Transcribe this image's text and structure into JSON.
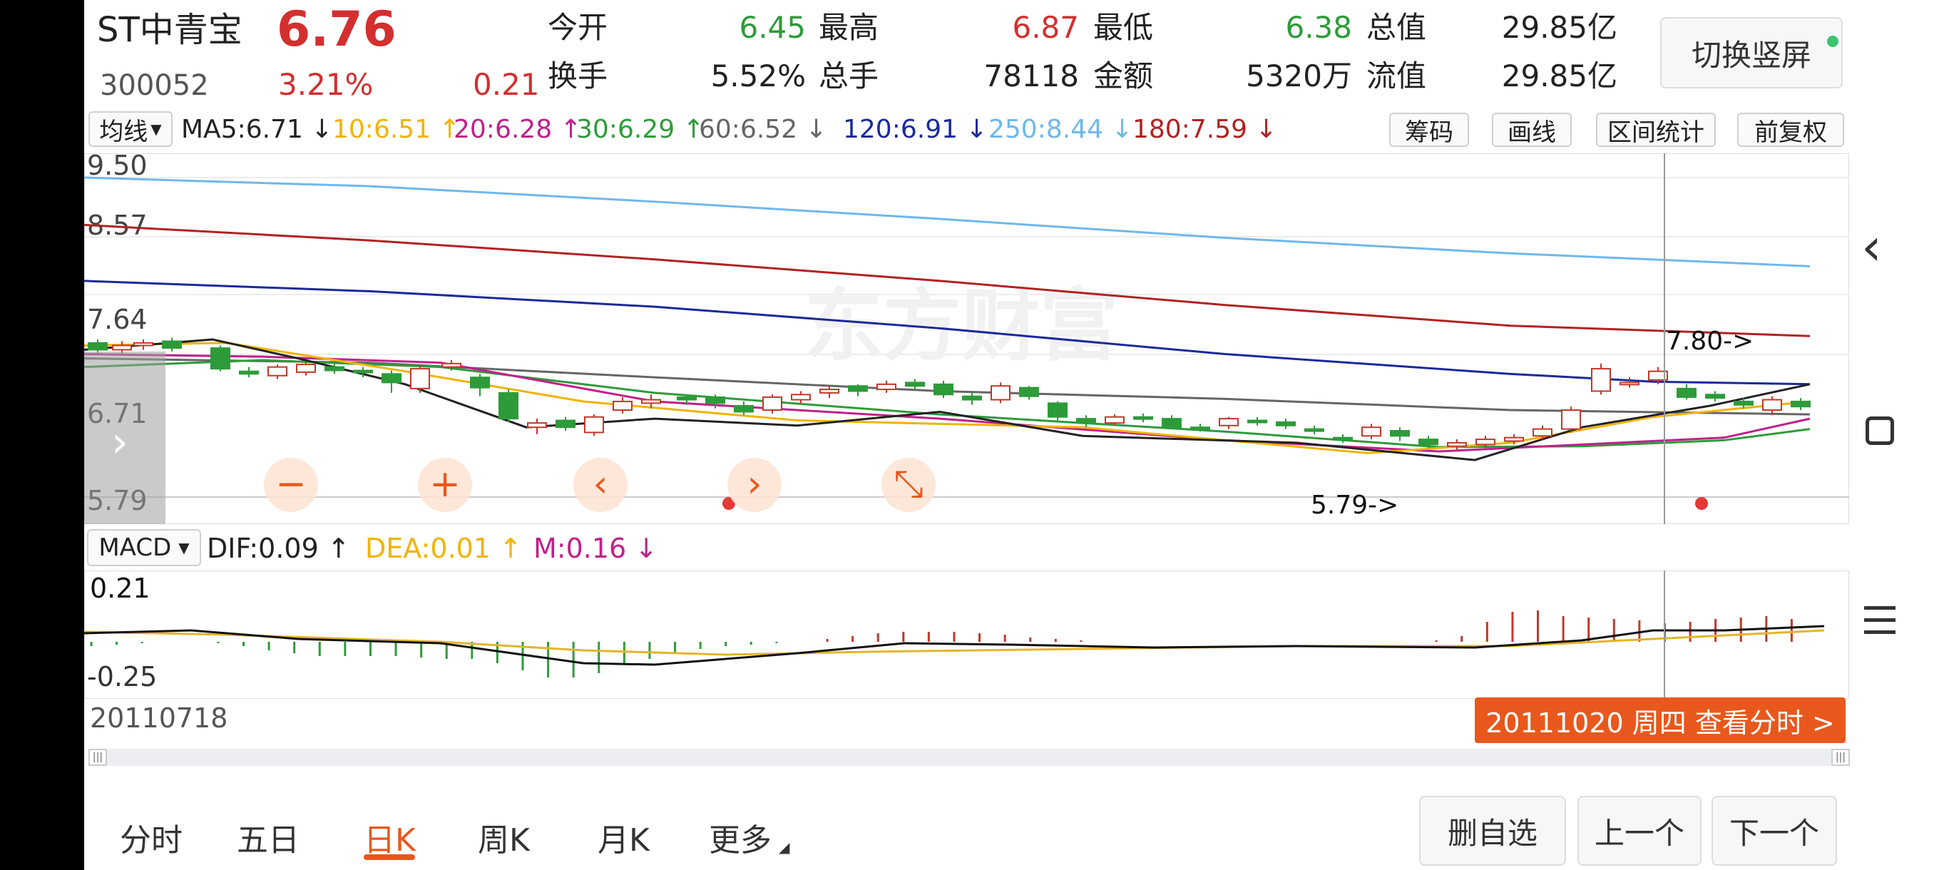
{
  "header": {
    "stock_name": "ST中青宝",
    "price": "6.76",
    "code": "300052",
    "change_pct": "3.21%",
    "change_amt": "0.21",
    "stats": [
      {
        "label": "今开",
        "value": "6.45",
        "color": "#2e9b3a"
      },
      {
        "label": "最高",
        "value": "6.87",
        "color": "#d32f2f"
      },
      {
        "label": "最低",
        "value": "6.38",
        "color": "#2e9b3a"
      },
      {
        "label": "总值",
        "value": "29.85亿",
        "color": "#222222"
      },
      {
        "label": "换手",
        "value": "5.52%",
        "color": "#222222"
      },
      {
        "label": "总手",
        "value": "78118",
        "color": "#222222"
      },
      {
        "label": "金额",
        "value": "5320万",
        "color": "#222222"
      },
      {
        "label": "流值",
        "value": "29.85亿",
        "color": "#222222"
      }
    ],
    "switch_button": "切换竖屏"
  },
  "ma_bar": {
    "dropdown": "均线",
    "items": [
      {
        "text": "MA5:6.71 ↓",
        "color": "#222222"
      },
      {
        "text": "10:6.51 ↑",
        "color": "#f0b400"
      },
      {
        "text": "20:6.28 ↑",
        "color": "#c0208a"
      },
      {
        "text": "30:6.29 ↑",
        "color": "#2e9b3a"
      },
      {
        "text": "60:6.52 ↓",
        "color": "#666666"
      },
      {
        "text": "120:6.91 ↓",
        "color": "#1a2a9a"
      },
      {
        "text": "250:8.44 ↓",
        "color": "#6fb8ea"
      },
      {
        "text": "180:7.59 ↓",
        "color": "#b22222"
      }
    ],
    "buttons": [
      "筹码",
      "画线",
      "区间统计",
      "前复权"
    ]
  },
  "main_chart": {
    "y_labels": [
      "9.50",
      "8.57",
      "7.64",
      "6.71",
      "5.79"
    ],
    "watermark": "东方财富",
    "high_annotation": "7.80->",
    "low_annotation": "5.79->",
    "left_tab_icon": "chevron-right-icon"
  },
  "macd_bar": {
    "dropdown": "MACD",
    "items": [
      {
        "text": "DIF:0.09 ↑",
        "color": "#222222"
      },
      {
        "text": "DEA:0.01 ↑",
        "color": "#f0b400"
      },
      {
        "text": "M:0.16 ↓",
        "color": "#c0208a"
      }
    ]
  },
  "macd_chart": {
    "y_labels": [
      "0.21",
      "-0.25"
    ]
  },
  "footer_info": {
    "start_date": "20110718",
    "crosshair_info": "20111020 周四  查看分时 >"
  },
  "bottom_tabs": [
    "分时",
    "五日",
    "日K",
    "周K",
    "月K",
    "更多"
  ],
  "active_tab": "日K",
  "bottom_buttons": [
    "删自选",
    "上一个",
    "下一个"
  ],
  "colors": {
    "up": "#d32f2f",
    "down": "#2e9b3a",
    "accent": "#e8581c"
  },
  "nav_icons": [
    "back-icon",
    "home-icon",
    "menu-icon"
  ]
}
